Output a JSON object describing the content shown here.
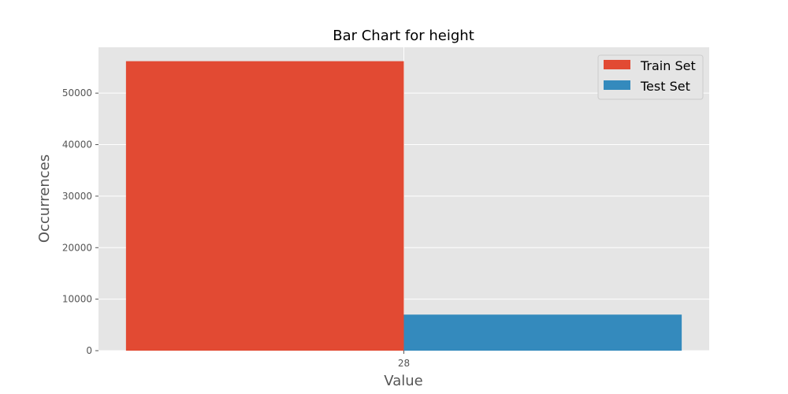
{
  "chart_data": {
    "type": "bar",
    "title": "Bar Chart for height",
    "xlabel": "Value",
    "ylabel": "Occurrences",
    "categories": [
      "28"
    ],
    "series": [
      {
        "name": "Train Set",
        "values": [
          56200
        ],
        "color": "#E24A33"
      },
      {
        "name": "Test Set",
        "values": [
          7000
        ],
        "color": "#348ABD"
      }
    ],
    "ylim": [
      0,
      58900
    ],
    "yticks": [
      0,
      10000,
      20000,
      30000,
      40000,
      50000
    ],
    "ytick_labels": [
      "0",
      "10000",
      "20000",
      "30000",
      "40000",
      "50000"
    ],
    "grid": true,
    "legend_position": "top-right",
    "style": {
      "plot_background": "#E5E5E5",
      "grid_color": "#FFFFFF"
    }
  }
}
